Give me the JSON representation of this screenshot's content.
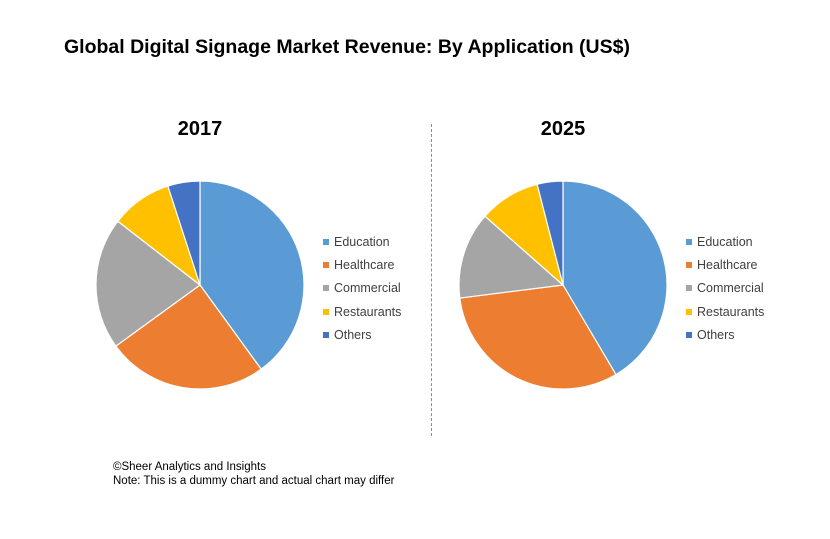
{
  "title": "Global Digital Signage Market Revenue: By Application (US$)",
  "legend": [
    "Education",
    "Healthcare",
    "Commercial",
    "Restaurants",
    "Others"
  ],
  "colors": [
    "#5b9bd5",
    "#ed7d31",
    "#a5a5a5",
    "#ffc000",
    "#4472c4"
  ],
  "chart_data": [
    {
      "type": "pie",
      "title": "2017",
      "categories": [
        "Education",
        "Healthcare",
        "Commercial",
        "Restaurants",
        "Others"
      ],
      "values": [
        40.0,
        25.0,
        20.5,
        9.5,
        5.0
      ]
    },
    {
      "type": "pie",
      "title": "2025",
      "categories": [
        "Education",
        "Healthcare",
        "Commercial",
        "Restaurants",
        "Others"
      ],
      "values": [
        41.5,
        31.5,
        13.5,
        9.5,
        4.0
      ]
    }
  ],
  "footer": {
    "source": "©Sheer Analytics and Insights",
    "note": "Note: This is a dummy chart and actual chart may differ"
  }
}
